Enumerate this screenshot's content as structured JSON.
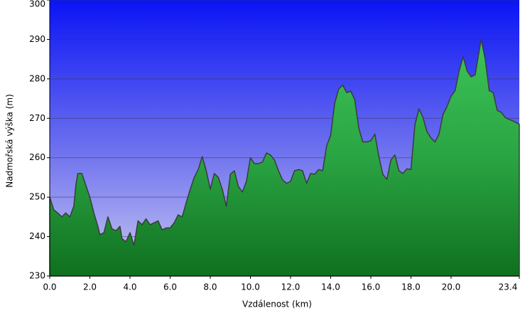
{
  "chart_data": {
    "type": "area",
    "x_label": "Vzdálenost   (km)",
    "y_label": "Nadmořská výška (m)",
    "xlim": [
      0,
      23.4
    ],
    "ylim": [
      230,
      300
    ],
    "xticks": [
      {
        "value": 0,
        "label": "0.0"
      },
      {
        "value": 2,
        "label": "2.0"
      },
      {
        "value": 4,
        "label": "4.0"
      },
      {
        "value": 6,
        "label": "6.0"
      },
      {
        "value": 8,
        "label": "8.0"
      },
      {
        "value": 10,
        "label": "10.0"
      },
      {
        "value": 12,
        "label": "12.0"
      },
      {
        "value": 14,
        "label": "14.0"
      },
      {
        "value": 16,
        "label": "16.0"
      },
      {
        "value": 18,
        "label": "18.0"
      },
      {
        "value": 20,
        "label": "20.0"
      },
      23.4
    ],
    "yticks": [
      230,
      240,
      250,
      260,
      270,
      280,
      290,
      300
    ],
    "grid": true,
    "color": "#2fb04a",
    "x": [
      0,
      0.2,
      0.4,
      0.6,
      0.8,
      1.0,
      1.2,
      1.3,
      1.4,
      1.6,
      1.8,
      2.0,
      2.2,
      2.4,
      2.5,
      2.7,
      2.9,
      3.1,
      3.3,
      3.5,
      3.6,
      3.8,
      4.0,
      4.2,
      4.4,
      4.6,
      4.8,
      5.0,
      5.2,
      5.4,
      5.6,
      5.8,
      6.0,
      6.2,
      6.4,
      6.6,
      6.8,
      7.0,
      7.2,
      7.4,
      7.6,
      7.8,
      8.0,
      8.2,
      8.4,
      8.6,
      8.8,
      9.0,
      9.2,
      9.4,
      9.6,
      9.8,
      10.0,
      10.2,
      10.4,
      10.6,
      10.8,
      11.0,
      11.2,
      11.4,
      11.6,
      11.8,
      12.0,
      12.2,
      12.4,
      12.6,
      12.8,
      13.0,
      13.2,
      13.4,
      13.6,
      13.8,
      14.0,
      14.2,
      14.4,
      14.6,
      14.8,
      15.0,
      15.2,
      15.4,
      15.6,
      15.8,
      16.0,
      16.2,
      16.4,
      16.6,
      16.8,
      17.0,
      17.2,
      17.4,
      17.6,
      17.8,
      18.0,
      18.2,
      18.4,
      18.6,
      18.8,
      19.0,
      19.2,
      19.4,
      19.6,
      19.8,
      20.0,
      20.2,
      20.4,
      20.6,
      20.8,
      21.0,
      21.2,
      21.4,
      21.5,
      21.7,
      21.9,
      22.1,
      22.3,
      22.5,
      22.7,
      22.9,
      23.1,
      23.4
    ],
    "values": [
      250,
      246.8,
      246,
      245,
      246,
      245,
      247.7,
      253,
      256,
      256,
      253,
      250,
      246,
      242.6,
      240.5,
      241,
      245,
      242,
      241.5,
      242.6,
      239.5,
      238.7,
      241,
      237.8,
      244,
      243,
      244.5,
      243,
      243.5,
      244,
      241.7,
      242.2,
      242.2,
      243.5,
      245.5,
      245,
      248.6,
      252,
      255,
      257,
      260.3,
      256.7,
      252,
      256,
      255,
      252,
      247.7,
      255.8,
      256.7,
      252.7,
      251.3,
      254,
      260,
      258.5,
      258.5,
      258.9,
      261.2,
      260.7,
      259.4,
      256.7,
      254.4,
      253.5,
      254,
      256.7,
      257,
      256.7,
      253.5,
      256,
      255.8,
      257,
      256.7,
      263,
      265.7,
      273.8,
      277.4,
      278.4,
      276.5,
      276.9,
      274.7,
      267.5,
      264,
      264,
      264.3,
      266,
      260.3,
      255.8,
      254.5,
      259.4,
      260.7,
      256.7,
      256,
      257.2,
      257,
      268.4,
      272.4,
      270.2,
      266.6,
      265,
      264,
      266,
      271,
      273,
      275.6,
      277,
      282,
      285.6,
      282,
      280.5,
      281,
      287,
      290,
      285,
      277,
      276.5,
      272,
      271.5,
      270.2,
      269.7,
      269.3,
      268.5
    ]
  }
}
